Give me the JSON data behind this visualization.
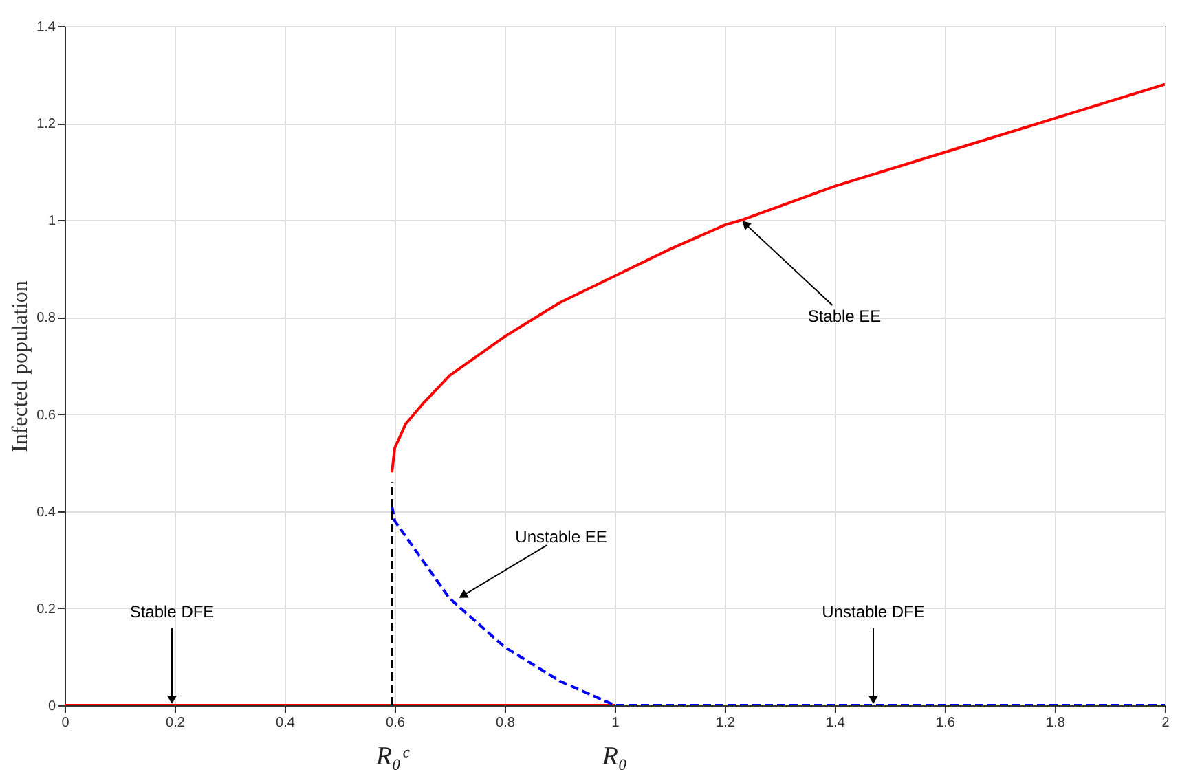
{
  "chart_data": {
    "type": "line",
    "ylabel": "Infected population",
    "xlim": [
      0,
      2
    ],
    "ylim": [
      0,
      1.4
    ],
    "xticks": [
      0,
      0.2,
      0.4,
      0.6,
      0.8,
      1,
      1.2,
      1.4,
      1.6,
      1.8,
      2
    ],
    "yticks": [
      0,
      0.2,
      0.4,
      0.6,
      0.8,
      1,
      1.2,
      1.4
    ],
    "grid": true,
    "series": [
      {
        "color": "#ff0000",
        "line_style": "solid",
        "x": [
          0,
          1
        ],
        "values": [
          0,
          0
        ]
      },
      {
        "color": "#ff0000",
        "line_style": "solid",
        "x": [
          0.595,
          0.6,
          0.62,
          0.65,
          0.7,
          0.8,
          0.9,
          1.0,
          1.1,
          1.2,
          1.23,
          1.4,
          1.6,
          1.8,
          2.0
        ],
        "values": [
          0.48,
          0.53,
          0.58,
          0.62,
          0.68,
          0.76,
          0.83,
          0.885,
          0.94,
          0.99,
          1.0,
          1.07,
          1.14,
          1.21,
          1.28
        ]
      },
      {
        "color": "#0000ff",
        "line_style": "dashed",
        "x": [
          0.595,
          0.6,
          0.65,
          0.7,
          0.8,
          0.9,
          1.0,
          2
        ],
        "values": [
          0.41,
          0.38,
          0.3,
          0.22,
          0.12,
          0.05,
          0,
          0
        ]
      },
      {
        "color": "#000000",
        "line_style": "dashed",
        "x": [
          0.595,
          0.595
        ],
        "values": [
          0,
          0.46
        ]
      }
    ],
    "annotations": [
      {
        "text": "Stable EE",
        "x": 1.23,
        "y": 1.0
      },
      {
        "text": "Unstable EE",
        "x": 0.715,
        "y": 0.22
      },
      {
        "text": "Stable DFE",
        "x": 0.195,
        "y": 0
      },
      {
        "text": "Unstable DFE",
        "x": 1.47,
        "y": 0
      },
      "R₀ᶜ",
      "R₀"
    ]
  }
}
